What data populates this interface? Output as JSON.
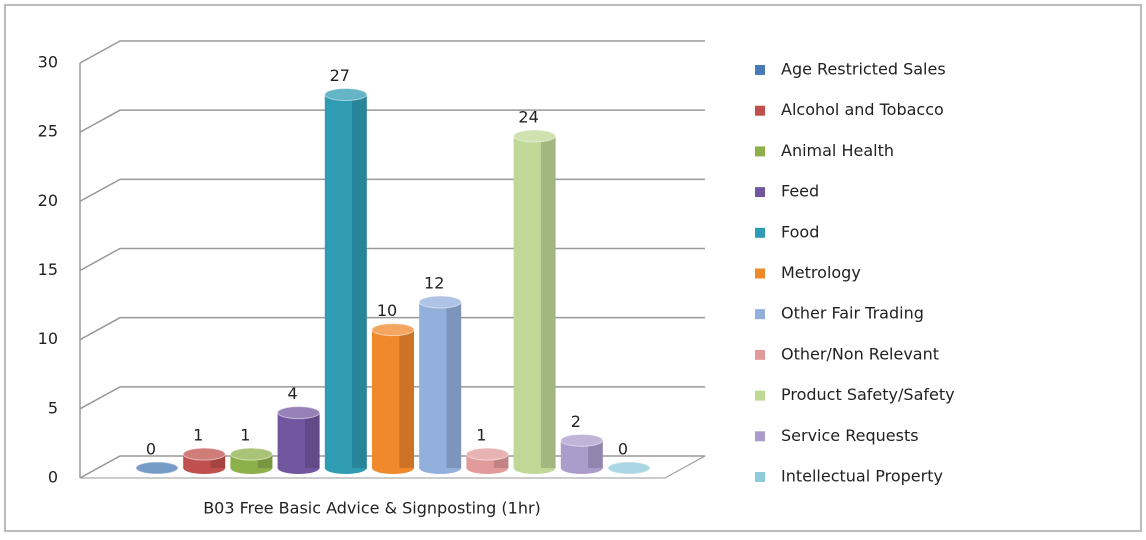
{
  "chart_data": {
    "type": "bar3d",
    "categories": [
      "B03  Free Basic Advice & Signposting (1hr)"
    ],
    "series": [
      {
        "name": "Age Restricted Sales",
        "color": "#4a7ab5",
        "values": [
          0
        ]
      },
      {
        "name": "Alcohol and Tobacco",
        "color": "#c0504d",
        "values": [
          1
        ]
      },
      {
        "name": "Animal Health",
        "color": "#8db04a",
        "values": [
          1
        ]
      },
      {
        "name": "Feed",
        "color": "#7257a0",
        "values": [
          4
        ]
      },
      {
        "name": "Food",
        "color": "#2f9cb4",
        "values": [
          27
        ]
      },
      {
        "name": "Metrology",
        "color": "#f0882c",
        "values": [
          10
        ]
      },
      {
        "name": "Other Fair Trading",
        "color": "#93afdc",
        "values": [
          12
        ]
      },
      {
        "name": "Other/Non Relevant",
        "color": "#e39a9a",
        "values": [
          1
        ]
      },
      {
        "name": "Product Safety/Safety",
        "color": "#bfd896",
        "values": [
          24
        ]
      },
      {
        "name": "Service Requests",
        "color": "#ab9ccc",
        "values": [
          2
        ]
      },
      {
        "name": "Intellectual Property",
        "color": "#8fcadb",
        "values": [
          0
        ]
      }
    ],
    "ylim": [
      0,
      30
    ],
    "yticks": [
      0,
      5,
      10,
      15,
      20,
      25,
      30
    ],
    "grid": true,
    "legend": "right"
  }
}
